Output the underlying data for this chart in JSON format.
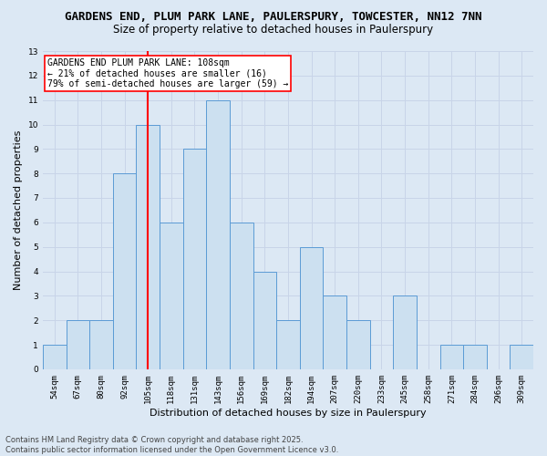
{
  "title_line1": "GARDENS END, PLUM PARK LANE, PAULERSPURY, TOWCESTER, NN12 7NN",
  "title_line2": "Size of property relative to detached houses in Paulerspury",
  "xlabel": "Distribution of detached houses by size in Paulerspury",
  "ylabel": "Number of detached properties",
  "categories": [
    "54sqm",
    "67sqm",
    "80sqm",
    "92sqm",
    "105sqm",
    "118sqm",
    "131sqm",
    "143sqm",
    "156sqm",
    "169sqm",
    "182sqm",
    "194sqm",
    "207sqm",
    "220sqm",
    "233sqm",
    "245sqm",
    "258sqm",
    "271sqm",
    "284sqm",
    "296sqm",
    "309sqm"
  ],
  "values": [
    1,
    2,
    2,
    8,
    10,
    6,
    9,
    11,
    6,
    4,
    2,
    5,
    3,
    2,
    0,
    3,
    0,
    1,
    1,
    0,
    1
  ],
  "bar_color": "#cce0f0",
  "bar_edge_color": "#5b9bd5",
  "ref_line_x": 4,
  "ref_line_color": "red",
  "annotation_text": "GARDENS END PLUM PARK LANE: 108sqm\n← 21% of detached houses are smaller (16)\n79% of semi-detached houses are larger (59) →",
  "annotation_box_color": "white",
  "annotation_box_edge": "red",
  "ylim": [
    0,
    13
  ],
  "yticks": [
    0,
    1,
    2,
    3,
    4,
    5,
    6,
    7,
    8,
    9,
    10,
    11,
    12,
    13
  ],
  "grid_color": "#c8d4e8",
  "footer": "Contains HM Land Registry data © Crown copyright and database right 2025.\nContains public sector information licensed under the Open Government Licence v3.0.",
  "bg_color": "#dce8f4",
  "plot_bg_color": "#dce8f4",
  "title_fontsize": 9,
  "subtitle_fontsize": 8.5,
  "tick_fontsize": 6.5,
  "label_fontsize": 8,
  "footer_fontsize": 6,
  "annot_fontsize": 7
}
